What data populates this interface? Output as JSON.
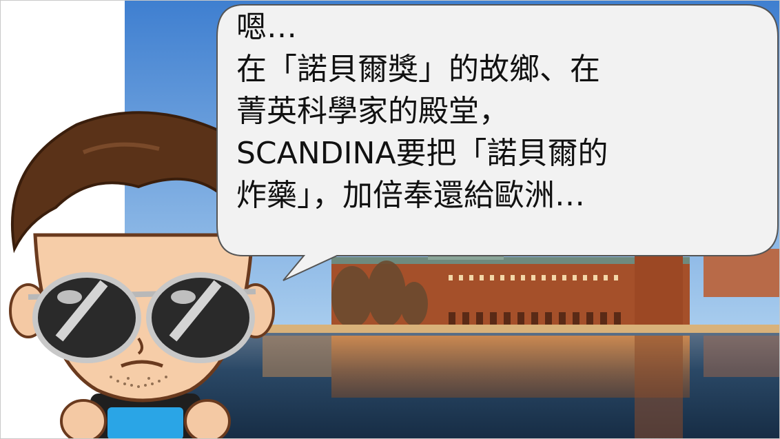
{
  "speech": {
    "lines": [
      "嗯…",
      "在「諾貝爾獎」的故鄉、在",
      "菁英科學家的殿堂，",
      "SCANDINA要把「諾貝爾的",
      "炸藥」，加倍奉還給歐洲…"
    ]
  },
  "colors": {
    "sky": "#4f8fd6",
    "bubble_fill": "#f2f2f2",
    "bubble_stroke": "#555555",
    "building": "#a5502a",
    "water": "#1d3550"
  }
}
